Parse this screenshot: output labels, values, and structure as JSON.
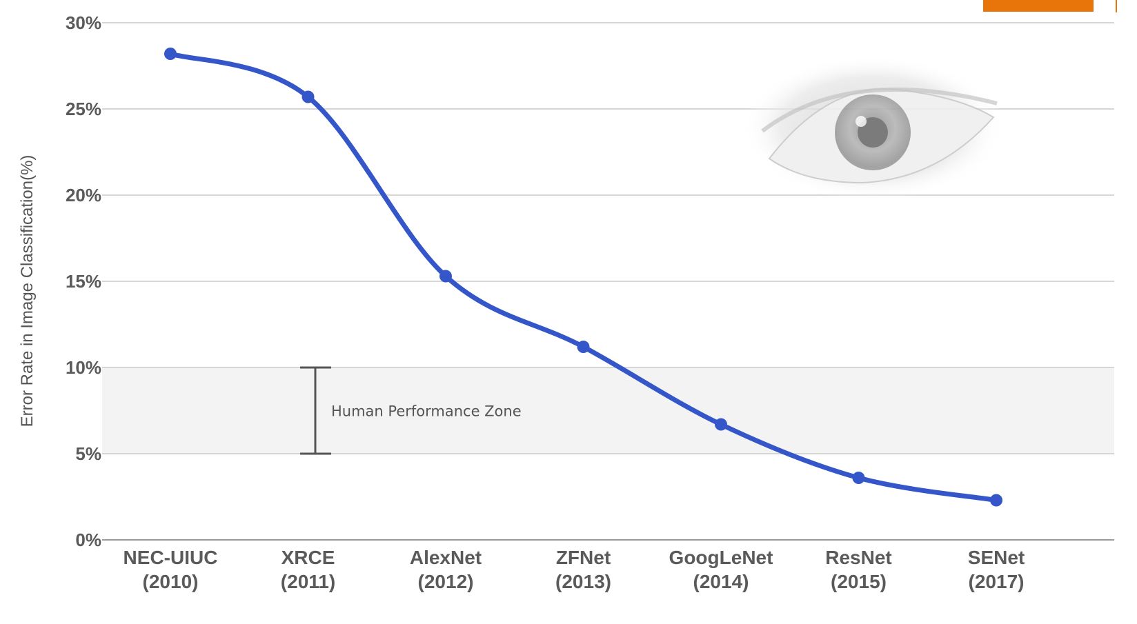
{
  "colors": {
    "series": "#3456c9",
    "zone_fill": "#f3f3f3",
    "grid": "#d6d6d6",
    "text": "#5a5a5a",
    "orange_accent": "#e8750a"
  },
  "chart_data": {
    "type": "line",
    "title": "",
    "ylabel": "Error Rate in Image Classification(%)",
    "xlabel": "",
    "ylim": [
      0,
      30
    ],
    "yticks": [
      {
        "value": 0,
        "label": "0%"
      },
      {
        "value": 5,
        "label": "5%"
      },
      {
        "value": 10,
        "label": "10%"
      },
      {
        "value": 15,
        "label": "15%"
      },
      {
        "value": 20,
        "label": "20%"
      },
      {
        "value": 25,
        "label": "25%"
      },
      {
        "value": 30,
        "label": "30%"
      }
    ],
    "grid": true,
    "categories": [
      {
        "name": "NEC-UIUC",
        "year": "(2010)"
      },
      {
        "name": "XRCE",
        "year": "(2011)"
      },
      {
        "name": "AlexNet",
        "year": "(2012)"
      },
      {
        "name": "ZFNet",
        "year": "(2013)"
      },
      {
        "name": "GoogLeNet",
        "year": "(2014)"
      },
      {
        "name": "ResNet",
        "year": "(2015)"
      },
      {
        "name": "SENet",
        "year": "(2017)"
      }
    ],
    "series": [
      {
        "values": [
          28.2,
          25.7,
          15.3,
          11.2,
          6.7,
          3.6,
          2.3
        ]
      }
    ],
    "annotations": {
      "human_zone": {
        "label": "Human Performance Zone",
        "range": [
          5,
          10
        ]
      }
    },
    "decorations": [
      "eye-image"
    ]
  }
}
